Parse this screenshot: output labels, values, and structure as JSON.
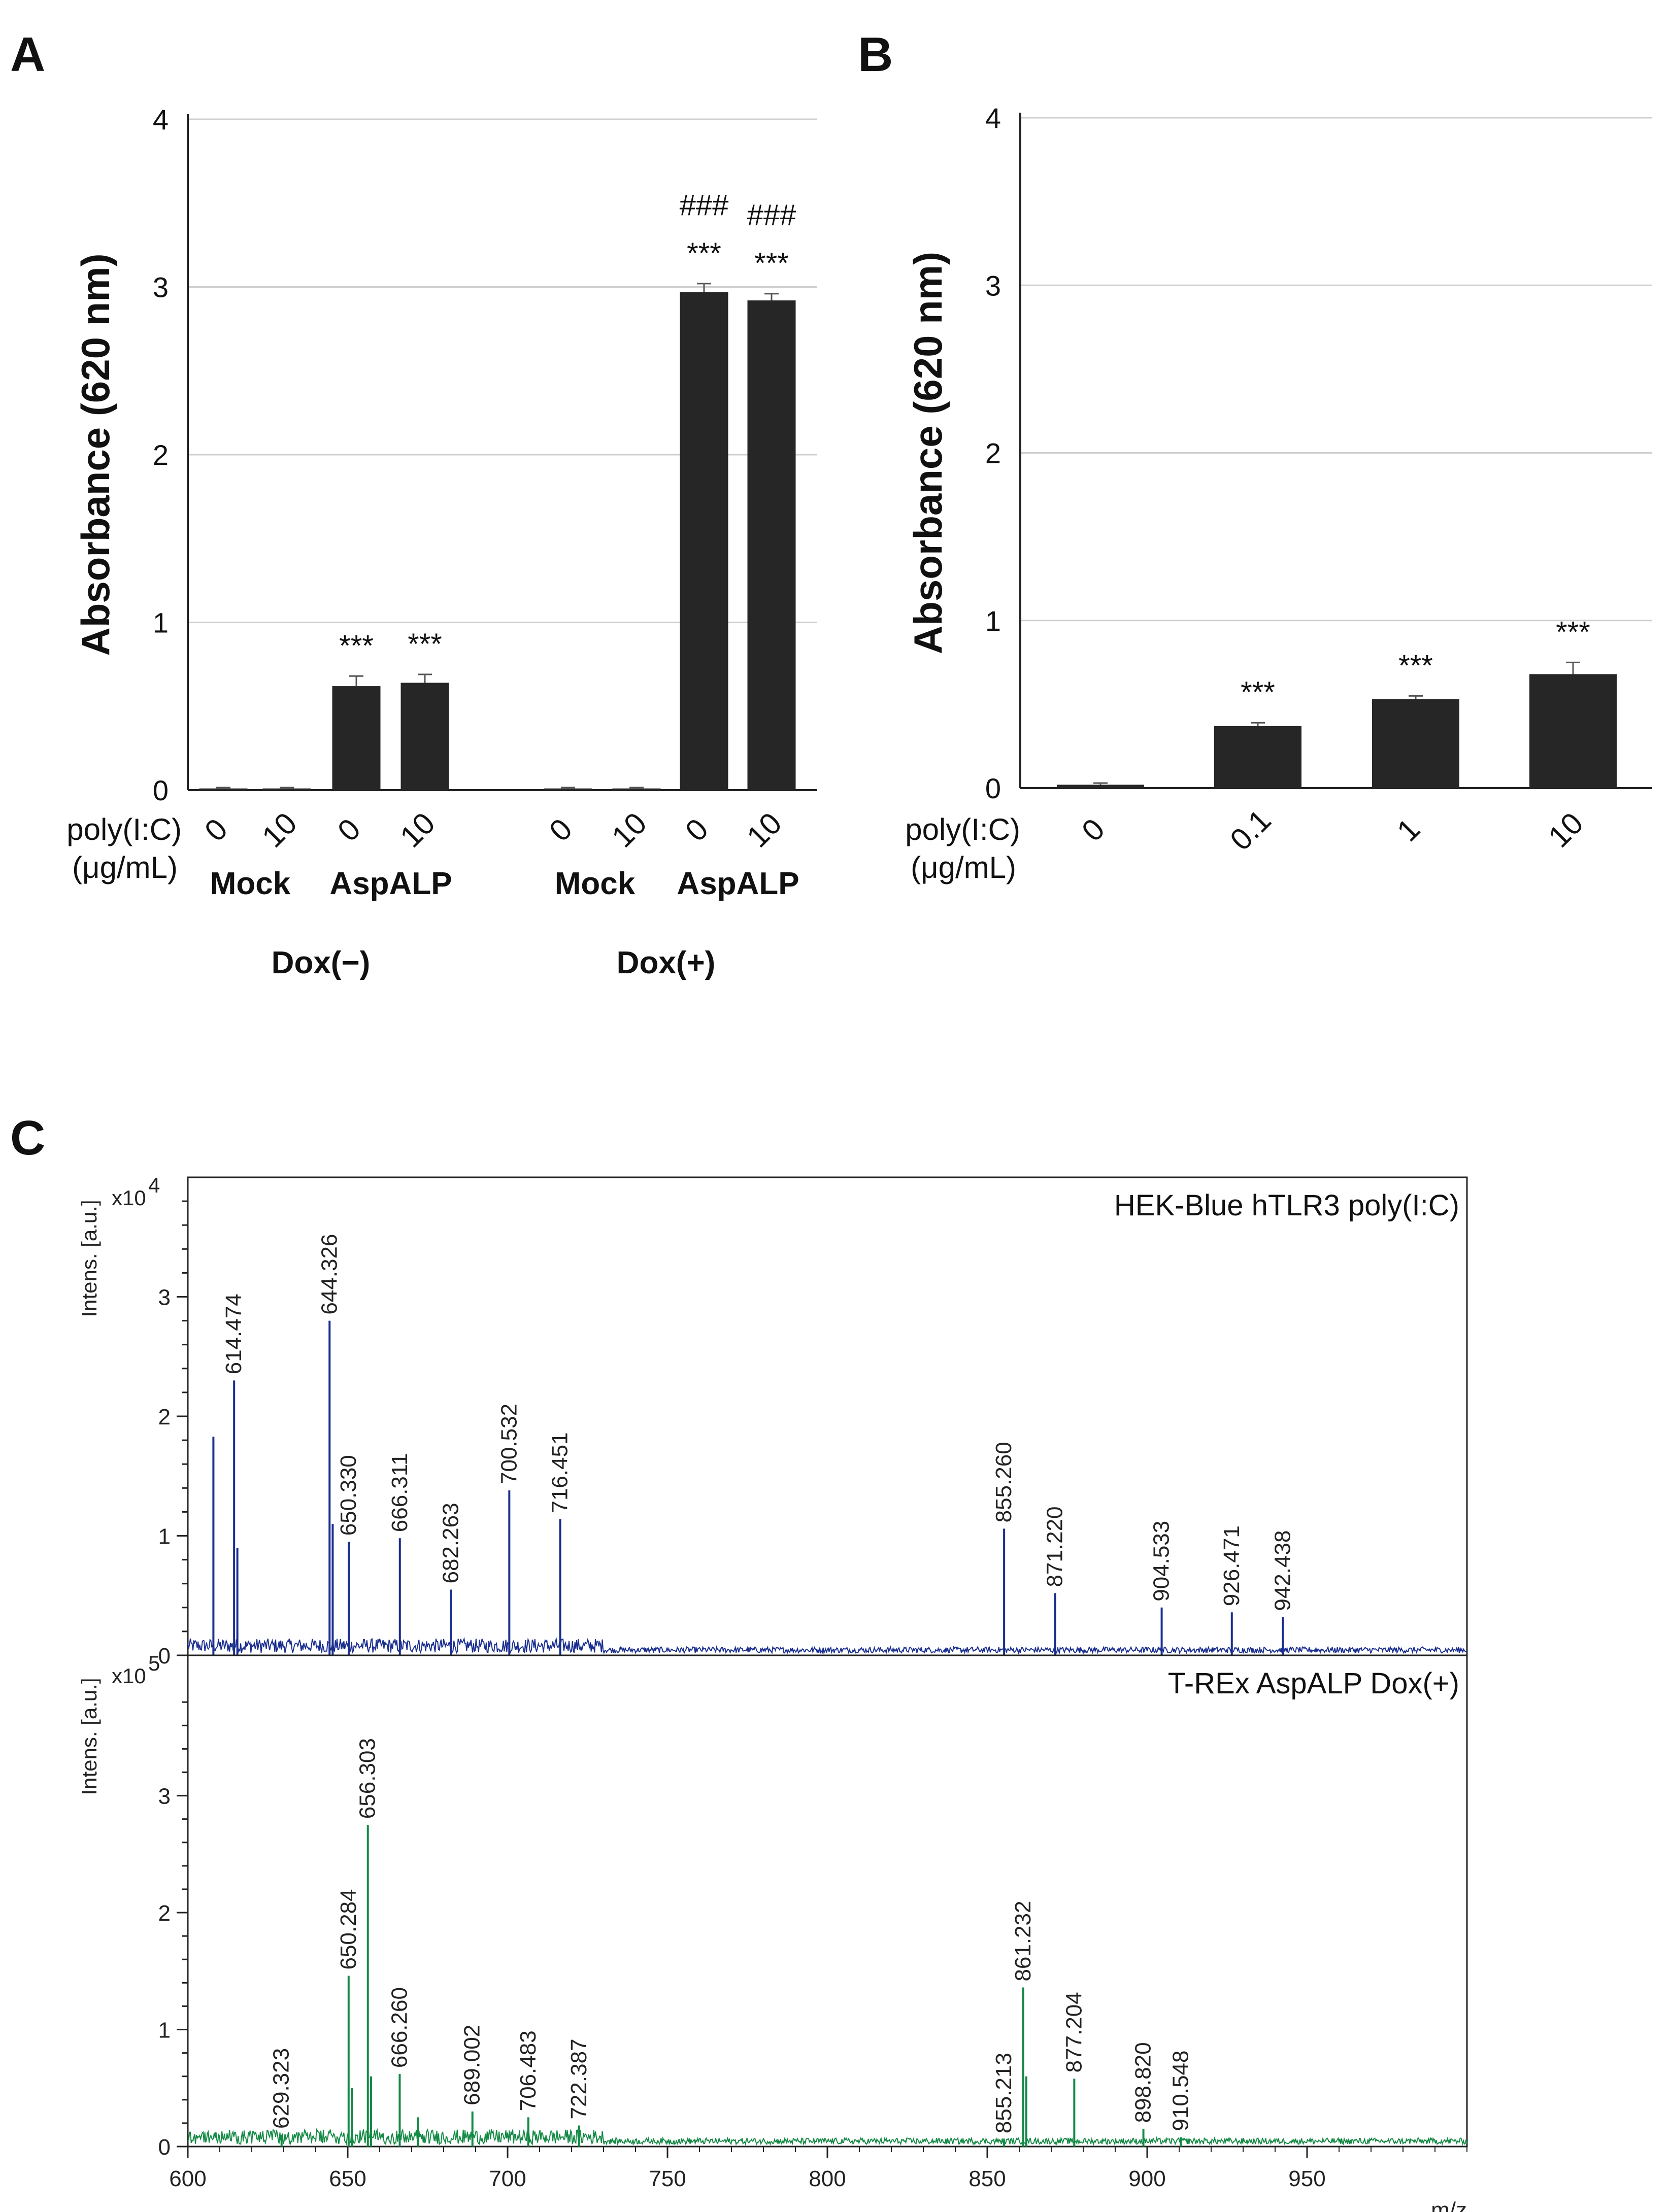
{
  "panels": {
    "A": "A",
    "B": "B",
    "C": "C"
  },
  "colors": {
    "bar": "#262626",
    "spectrum1": "#1a2e8f",
    "spectrum2": "#148a45"
  },
  "chart_data": [
    {
      "type": "bar",
      "panel": "A",
      "ylabel": "Absorbance (620 nm)",
      "ylim": [
        0,
        4
      ],
      "yticks": [
        "0",
        "1",
        "2",
        "3",
        "4"
      ],
      "grid": true,
      "row_label": [
        "poly(I:C)",
        "(μg/mL)"
      ],
      "categories": [
        "0",
        "10",
        "0",
        "10",
        "0",
        "10",
        "0",
        "10"
      ],
      "subgroups": [
        "Mock",
        "AspALP",
        "Mock",
        "AspALP"
      ],
      "groups": [
        "Dox(−)",
        "Dox(+)"
      ],
      "values": [
        0.01,
        0.01,
        0.62,
        0.64,
        0.01,
        0.01,
        2.97,
        2.92
      ],
      "errors": [
        0.005,
        0.005,
        0.06,
        0.05,
        0.005,
        0.005,
        0.05,
        0.04
      ],
      "annotations": [
        "",
        "",
        "***",
        "***",
        "",
        "",
        "###\n***",
        "###\n***"
      ]
    },
    {
      "type": "bar",
      "panel": "B",
      "ylabel": "Absorbance (620 nm)",
      "ylim": [
        0,
        4
      ],
      "yticks": [
        "0",
        "1",
        "2",
        "3",
        "4"
      ],
      "grid": true,
      "row_label": [
        "poly(I:C)",
        "(μg/mL)"
      ],
      "categories": [
        "0",
        "0.1",
        "1",
        "10"
      ],
      "values": [
        0.02,
        0.37,
        0.53,
        0.68
      ],
      "errors": [
        0.01,
        0.02,
        0.02,
        0.07
      ],
      "annotations": [
        "",
        "***",
        "***",
        "***"
      ]
    },
    {
      "type": "line",
      "panel": "C",
      "title": "HEK-Blue hTLR3 poly(I:C)",
      "ylabel": "Intens. [a.u.]",
      "yscale": "x10",
      "yscale_exp": "4",
      "ylim": [
        0,
        4
      ],
      "yticks": [
        "0",
        "1",
        "2",
        "3"
      ],
      "xlim": [
        600,
        1000
      ],
      "peaks": [
        {
          "mz": 608.0,
          "h": 1.83
        },
        {
          "mz": 614.474,
          "h": 2.3
        },
        {
          "mz": 615.5,
          "h": 0.9
        },
        {
          "mz": 644.326,
          "h": 2.8
        },
        {
          "mz": 645.3,
          "h": 1.1
        },
        {
          "mz": 650.33,
          "h": 0.95
        },
        {
          "mz": 666.311,
          "h": 0.98
        },
        {
          "mz": 682.263,
          "h": 0.55
        },
        {
          "mz": 700.532,
          "h": 1.38
        },
        {
          "mz": 716.451,
          "h": 1.14
        },
        {
          "mz": 855.26,
          "h": 1.06
        },
        {
          "mz": 871.22,
          "h": 0.52
        },
        {
          "mz": 904.533,
          "h": 0.4
        },
        {
          "mz": 926.471,
          "h": 0.36
        },
        {
          "mz": 942.438,
          "h": 0.32
        }
      ],
      "labels": [
        "614.474",
        "644.326",
        "650.330",
        "666.311",
        "682.263",
        "700.532",
        "716.451",
        "855.260",
        "871.220",
        "904.533",
        "926.471",
        "942.438"
      ]
    },
    {
      "type": "line",
      "panel": "C",
      "title": "T-REx AspALP Dox(+)",
      "ylabel": "Intens. [a.u.]",
      "yscale": "x10",
      "yscale_exp": "5",
      "ylim": [
        0,
        4.2
      ],
      "yticks": [
        "0",
        "1",
        "2",
        "3"
      ],
      "xlim": [
        600,
        1000
      ],
      "xticks": [
        "600",
        "650",
        "700",
        "750",
        "800",
        "850",
        "900",
        "950"
      ],
      "xlabel": "m/z",
      "peaks": [
        {
          "mz": 629.323,
          "h": 0.1
        },
        {
          "mz": 650.284,
          "h": 1.46
        },
        {
          "mz": 651.3,
          "h": 0.5
        },
        {
          "mz": 656.303,
          "h": 2.75
        },
        {
          "mz": 657.3,
          "h": 0.6
        },
        {
          "mz": 666.26,
          "h": 0.62
        },
        {
          "mz": 672.0,
          "h": 0.25
        },
        {
          "mz": 689.002,
          "h": 0.3
        },
        {
          "mz": 706.483,
          "h": 0.25
        },
        {
          "mz": 722.387,
          "h": 0.18
        },
        {
          "mz": 855.213,
          "h": 0.06
        },
        {
          "mz": 861.232,
          "h": 1.36
        },
        {
          "mz": 862.2,
          "h": 0.6
        },
        {
          "mz": 877.204,
          "h": 0.58
        },
        {
          "mz": 898.82,
          "h": 0.15
        },
        {
          "mz": 910.548,
          "h": 0.08
        }
      ],
      "labels": [
        "629.323",
        "650.284",
        "656.303",
        "666.260",
        "689.002",
        "706.483",
        "722.387",
        "855.213",
        "861.232",
        "877.204",
        "898.820",
        "910.548"
      ]
    }
  ]
}
